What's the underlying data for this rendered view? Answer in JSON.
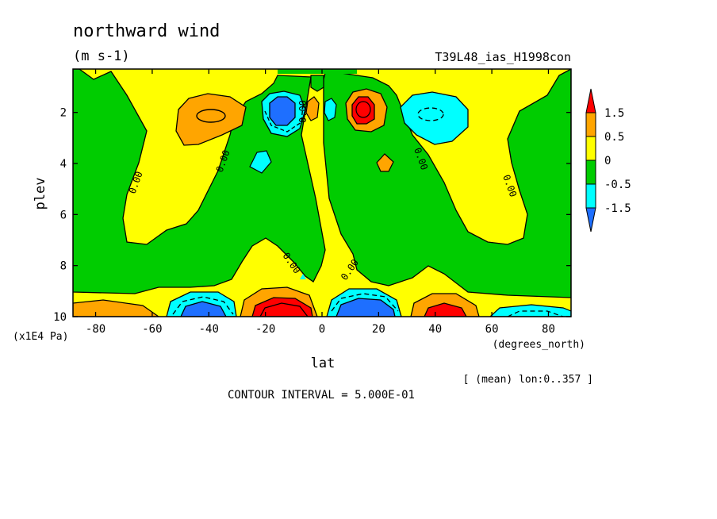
{
  "chart_data": {
    "type": "heatmap",
    "subtype": "filled-contour",
    "title": "northward wind",
    "units": "(m s-1)",
    "run_label": "T39L48_ias_H1998con",
    "xlabel": "lat",
    "xunits": "(degrees_north)",
    "ylabel": "plev",
    "yunits": "(x1E4 Pa)",
    "x_ticks": [
      "-80",
      "-60",
      "-40",
      "-20",
      "0",
      "20",
      "40",
      "60",
      "80"
    ],
    "x_tick_values": [
      -80,
      -60,
      -40,
      -20,
      0,
      20,
      40,
      60,
      80
    ],
    "y_ticks": [
      "2",
      "4",
      "6",
      "8",
      "10"
    ],
    "y_tick_values": [
      2,
      4,
      6,
      8,
      10
    ],
    "xlim": [
      -88,
      88
    ],
    "ylim": [
      10,
      0.3
    ],
    "y_reversed": true,
    "mean_note": "[ (mean) lon:0..357 ]",
    "contour_interval_text": "CONTOUR INTERVAL = 5.000E-01",
    "contour_interval": 0.5,
    "zero_contour_label": "0.00",
    "colorbar": {
      "labels": [
        "1.5",
        "0.5",
        "0",
        "-0.5",
        "-1.5"
      ],
      "bands": [
        {
          "range": "> 1.5",
          "color": "#ff0000"
        },
        {
          "range": "0.5 .. 1.5",
          "color": "#ffa500"
        },
        {
          "range": "0 .. 0.5",
          "color": "#ffff00"
        },
        {
          "range": "-0.5 .. 0",
          "color": "#00cc00"
        },
        {
          "range": "-1.5 .. -0.5",
          "color": "#00ffff"
        },
        {
          "range": "< -1.5",
          "color": "#1e6fff"
        }
      ]
    },
    "features": [
      {
        "kind": "positive max",
        "lat": -40,
        "plev": 2.0,
        "approx_value": 1.0
      },
      {
        "kind": "negative min",
        "lat": -15,
        "plev": 1.8,
        "approx_value": -2.0
      },
      {
        "kind": "positive max",
        "lat": 13,
        "plev": 1.8,
        "approx_value": 2.5
      },
      {
        "kind": "negative min",
        "lat": 38,
        "plev": 2.0,
        "approx_value": -1.0
      },
      {
        "kind": "positive max",
        "lat": -15,
        "plev": 9.6,
        "approx_value": 2.5
      },
      {
        "kind": "negative min",
        "lat": 12,
        "plev": 9.6,
        "approx_value": -2.5
      },
      {
        "kind": "negative min",
        "lat": -42,
        "plev": 9.6,
        "approx_value": -2.0
      },
      {
        "kind": "positive max",
        "lat": 42,
        "plev": 9.7,
        "approx_value": 2.0
      }
    ]
  }
}
